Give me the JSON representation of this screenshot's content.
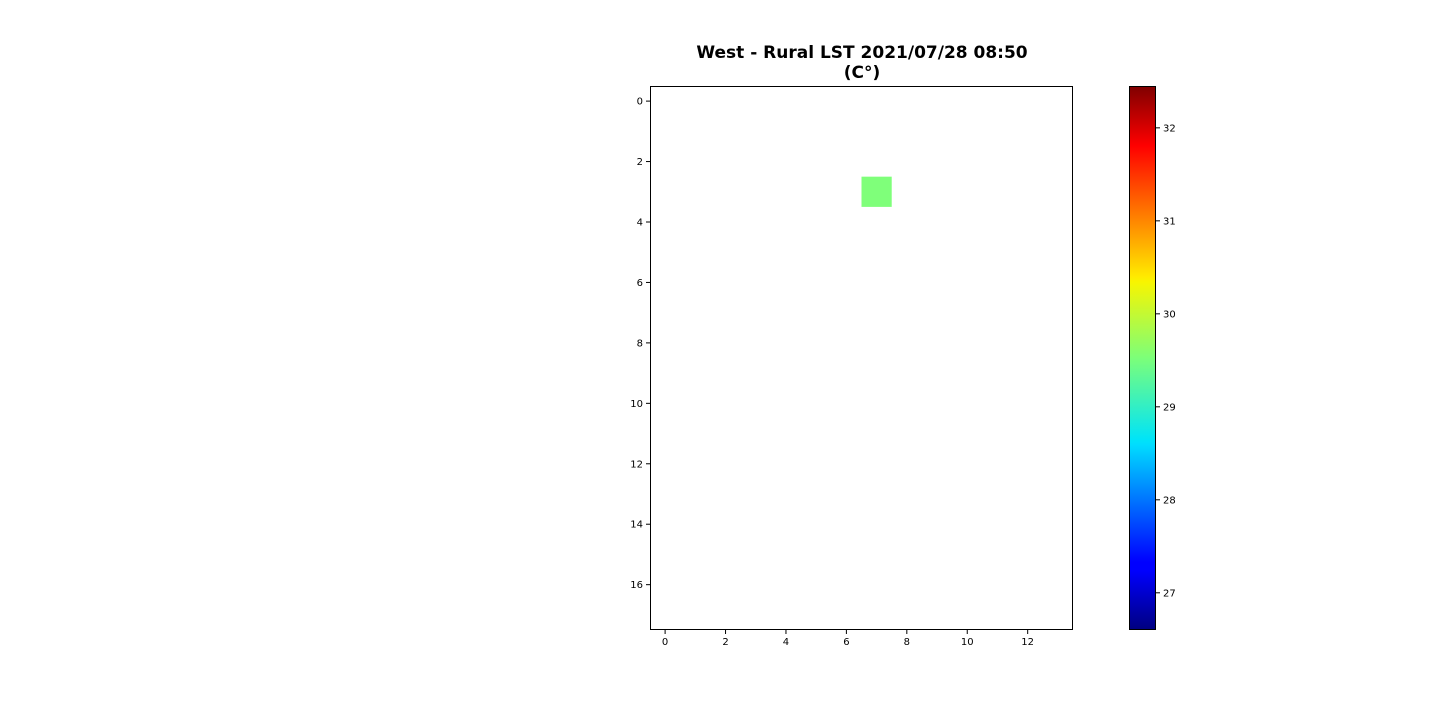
{
  "chart_data": {
    "type": "heatmap",
    "title": "West - Rural LST 2021/07/28 08:50",
    "subtitle": "(C°)",
    "xlabel": "",
    "ylabel": "",
    "grid": false,
    "grid_shape": {
      "rows": 18,
      "cols": 14
    },
    "xlim": [
      -0.5,
      13.5
    ],
    "ylim": [
      17.5,
      -0.5
    ],
    "x_ticks": [
      0,
      2,
      4,
      6,
      8,
      10,
      12
    ],
    "y_ticks": [
      0,
      2,
      4,
      6,
      8,
      10,
      12,
      14,
      16
    ],
    "cells": [
      {
        "row": 3,
        "col": 7,
        "value": 29.6,
        "color": "#7fff7a"
      }
    ],
    "missing_cells_rendered_as": "#ffffff",
    "colorbar": {
      "colormap": "jet",
      "vmin": 26.6,
      "vmax": 32.45,
      "ticks": [
        27,
        28,
        29,
        30,
        31,
        32
      ],
      "position": "right"
    }
  }
}
